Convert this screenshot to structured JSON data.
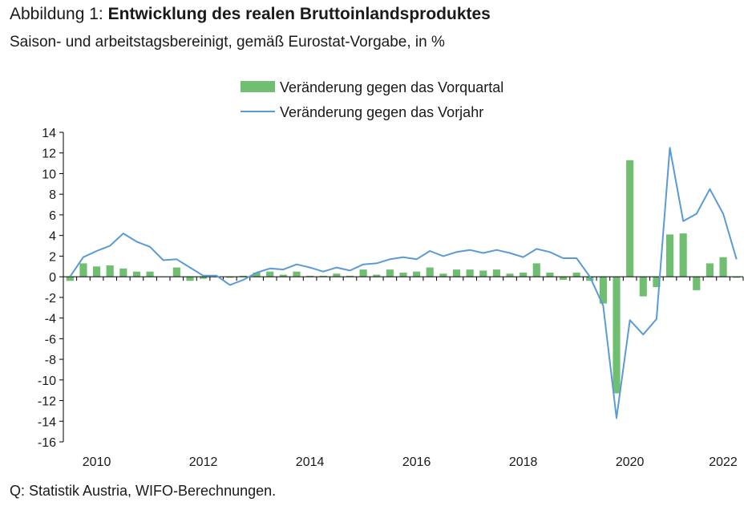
{
  "figure": {
    "title_prefix": "Abbildung 1: ",
    "title_main": "Entwicklung des realen Bruttoinlandsproduktes",
    "subtitle": "Saison- und arbeitstagsbereinigt, gemäß Eurostat-Vorgabe, in %",
    "source": "Q: Statistik Austria, WIFO-Berechnungen."
  },
  "chart_data": {
    "type": "bar",
    "title": "Entwicklung des realen Bruttoinlandsproduktes",
    "subtitle": "Saison- und arbeitstagsbereinigt, gemäß Eurostat-Vorgabe, in %",
    "x_tick_labels": [
      "2010",
      "2012",
      "2014",
      "2016",
      "2018",
      "2020",
      "2022"
    ],
    "x_start_year": 2010,
    "ylim": [
      -16,
      14
    ],
    "y_ticks": [
      -16,
      -14,
      -12,
      -10,
      -8,
      -6,
      -4,
      -2,
      0,
      2,
      4,
      6,
      8,
      10,
      12,
      14
    ],
    "grid": false,
    "legend_position": "top-center",
    "categories": [
      "2009 Q4",
      "2010 Q1",
      "2010 Q2",
      "2010 Q3",
      "2010 Q4",
      "2011 Q1",
      "2011 Q2",
      "2011 Q3",
      "2011 Q4",
      "2012 Q1",
      "2012 Q2",
      "2012 Q3",
      "2012 Q4",
      "2013 Q1",
      "2013 Q2",
      "2013 Q3",
      "2013 Q4",
      "2014 Q1",
      "2014 Q2",
      "2014 Q3",
      "2014 Q4",
      "2015 Q1",
      "2015 Q2",
      "2015 Q3",
      "2015 Q4",
      "2016 Q1",
      "2016 Q2",
      "2016 Q3",
      "2016 Q4",
      "2017 Q1",
      "2017 Q2",
      "2017 Q3",
      "2017 Q4",
      "2018 Q1",
      "2018 Q2",
      "2018 Q3",
      "2018 Q4",
      "2019 Q1",
      "2019 Q2",
      "2019 Q3",
      "2019 Q4",
      "2020 Q1",
      "2020 Q2",
      "2020 Q3",
      "2020 Q4",
      "2021 Q1",
      "2021 Q2",
      "2021 Q3",
      "2021 Q4",
      "2022 Q1",
      "2022 Q2"
    ],
    "series": [
      {
        "name": "Veränderung gegen das Vorquartal",
        "type": "bar",
        "color": "#70bf70",
        "values": [
          -0.4,
          1.3,
          1.0,
          1.1,
          0.8,
          0.5,
          0.5,
          0.0,
          0.9,
          -0.4,
          -0.2,
          0.0,
          -0.1,
          0.1,
          0.4,
          0.5,
          0.2,
          0.5,
          0.1,
          0.1,
          0.3,
          0.1,
          0.7,
          0.2,
          0.7,
          0.4,
          0.5,
          0.9,
          0.3,
          0.7,
          0.7,
          0.6,
          0.7,
          0.3,
          0.4,
          1.3,
          0.4,
          -0.3,
          0.4,
          -0.4,
          -2.6,
          -11.3,
          11.3,
          -1.9,
          -1.0,
          4.1,
          4.2,
          -1.3,
          1.3,
          1.9,
          -0.1
        ]
      },
      {
        "name": "Veränderung gegen das Vorjahr",
        "type": "line",
        "color": "#5b9bd5",
        "values": [
          0.0,
          1.9,
          2.5,
          3.0,
          4.2,
          3.4,
          2.9,
          1.6,
          1.7,
          0.9,
          0.1,
          0.1,
          -0.8,
          -0.3,
          0.4,
          0.8,
          0.7,
          1.2,
          0.9,
          0.5,
          0.9,
          0.6,
          1.2,
          1.3,
          1.7,
          1.9,
          1.7,
          2.5,
          2.0,
          2.4,
          2.6,
          2.3,
          2.6,
          2.3,
          1.9,
          2.7,
          2.4,
          1.8,
          1.8,
          0.0,
          -2.8,
          -13.7,
          -4.2,
          -5.6,
          -4.1,
          12.5,
          5.4,
          6.1,
          8.5,
          6.1,
          1.7
        ]
      }
    ]
  }
}
